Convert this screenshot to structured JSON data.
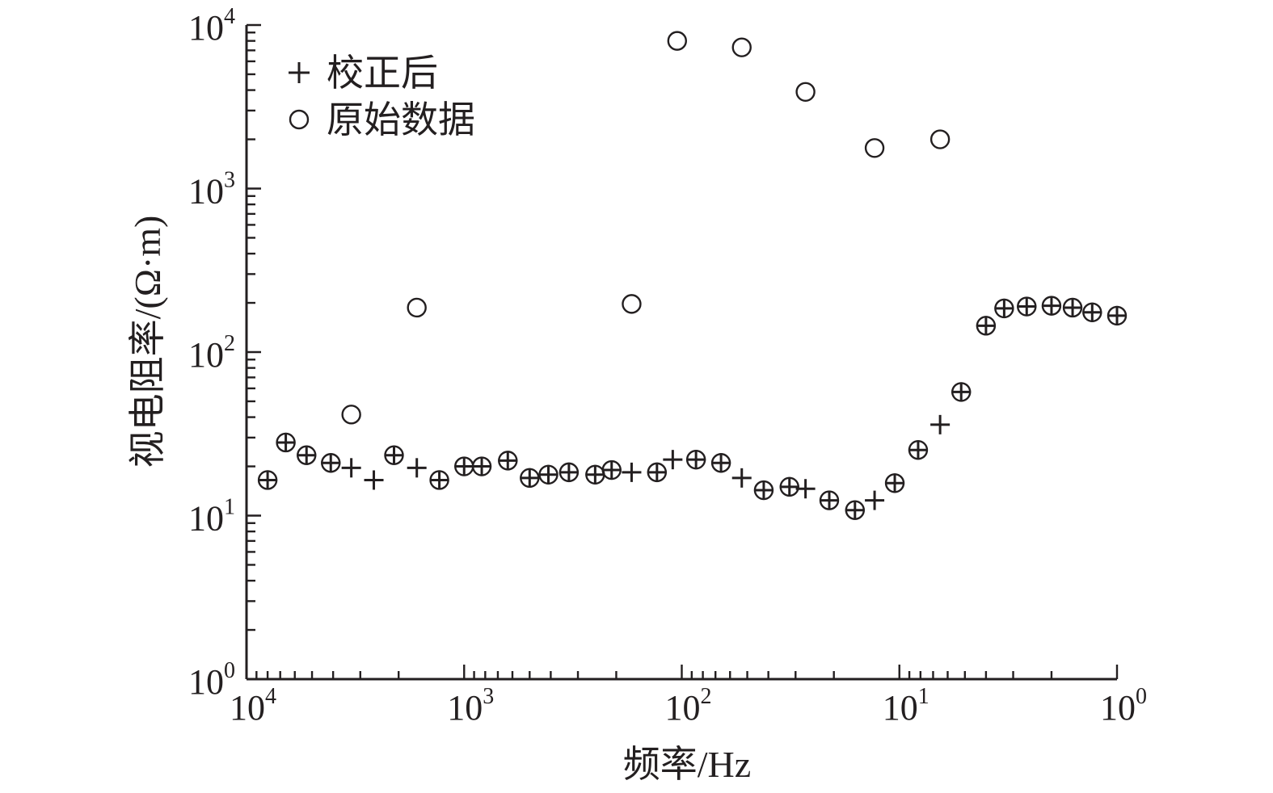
{
  "chart_data": {
    "type": "scatter",
    "xlabel": "频率/Hz",
    "ylabel": "视电阻率/(Ω·m)",
    "x_scale": "log",
    "y_scale": "log",
    "x_reversed": true,
    "xlim": [
      10000,
      1
    ],
    "ylim": [
      1,
      10000
    ],
    "grid": false,
    "legend_position": "top-left",
    "x_ticks": [
      {
        "base": "10",
        "exp": "4",
        "value": 10000
      },
      {
        "base": "10",
        "exp": "3",
        "value": 1000
      },
      {
        "base": "10",
        "exp": "2",
        "value": 100
      },
      {
        "base": "10",
        "exp": "1",
        "value": 10
      },
      {
        "base": "10",
        "exp": "0",
        "value": 1
      }
    ],
    "y_ticks": [
      {
        "base": "10",
        "exp": "0",
        "value": 1
      },
      {
        "base": "10",
        "exp": "1",
        "value": 10
      },
      {
        "base": "10",
        "exp": "2",
        "value": 100
      },
      {
        "base": "10",
        "exp": "3",
        "value": 1000
      },
      {
        "base": "10",
        "exp": "4",
        "value": 10000
      }
    ],
    "series": [
      {
        "name": "校正后",
        "marker": "plus",
        "points": [
          [
            8000,
            16.5
          ],
          [
            6600,
            28
          ],
          [
            5300,
            23.4
          ],
          [
            4100,
            21
          ],
          [
            3300,
            19.6
          ],
          [
            2600,
            16.5
          ],
          [
            2100,
            23.4
          ],
          [
            1650,
            19.6
          ],
          [
            1300,
            16.5
          ],
          [
            1000,
            20
          ],
          [
            830,
            20
          ],
          [
            630,
            21.7
          ],
          [
            500,
            17
          ],
          [
            410,
            17.8
          ],
          [
            330,
            18.4
          ],
          [
            250,
            17.8
          ],
          [
            210,
            19
          ],
          [
            170,
            18.4
          ],
          [
            130,
            18.4
          ],
          [
            110,
            22
          ],
          [
            86,
            22
          ],
          [
            66,
            21
          ],
          [
            53,
            17
          ],
          [
            42,
            14.3
          ],
          [
            32,
            15
          ],
          [
            27,
            14.6
          ],
          [
            21,
            12.4
          ],
          [
            16,
            10.8
          ],
          [
            13,
            12.4
          ],
          [
            10.5,
            15.8
          ],
          [
            8.2,
            25.2
          ],
          [
            6.5,
            36
          ],
          [
            5.2,
            57
          ],
          [
            4,
            145
          ],
          [
            3.3,
            185
          ],
          [
            2.6,
            190
          ],
          [
            2,
            192
          ],
          [
            1.6,
            187
          ],
          [
            1.3,
            175
          ],
          [
            1,
            167
          ]
        ]
      },
      {
        "name": "原始数据",
        "marker": "circle",
        "points": [
          [
            8000,
            16.5
          ],
          [
            6600,
            28
          ],
          [
            5300,
            23.4
          ],
          [
            4100,
            21
          ],
          [
            3300,
            41.5
          ],
          [
            2100,
            23.4
          ],
          [
            1650,
            187
          ],
          [
            1300,
            16.5
          ],
          [
            1000,
            20
          ],
          [
            830,
            20
          ],
          [
            630,
            21.7
          ],
          [
            500,
            17
          ],
          [
            410,
            17.8
          ],
          [
            330,
            18.4
          ],
          [
            250,
            17.8
          ],
          [
            210,
            19
          ],
          [
            170,
            197
          ],
          [
            130,
            18.4
          ],
          [
            105,
            8000
          ],
          [
            86,
            22
          ],
          [
            66,
            21
          ],
          [
            53,
            7300
          ],
          [
            42,
            14.3
          ],
          [
            32,
            15
          ],
          [
            27,
            3900
          ],
          [
            21,
            12.4
          ],
          [
            16,
            10.8
          ],
          [
            13,
            1770
          ],
          [
            10.5,
            15.8
          ],
          [
            8.2,
            25.2
          ],
          [
            6.5,
            2000
          ],
          [
            5.2,
            57
          ],
          [
            4,
            145
          ],
          [
            3.3,
            185
          ],
          [
            2.6,
            190
          ],
          [
            2,
            192
          ],
          [
            1.6,
            187
          ],
          [
            1.3,
            175
          ],
          [
            1,
            167
          ]
        ]
      }
    ]
  }
}
